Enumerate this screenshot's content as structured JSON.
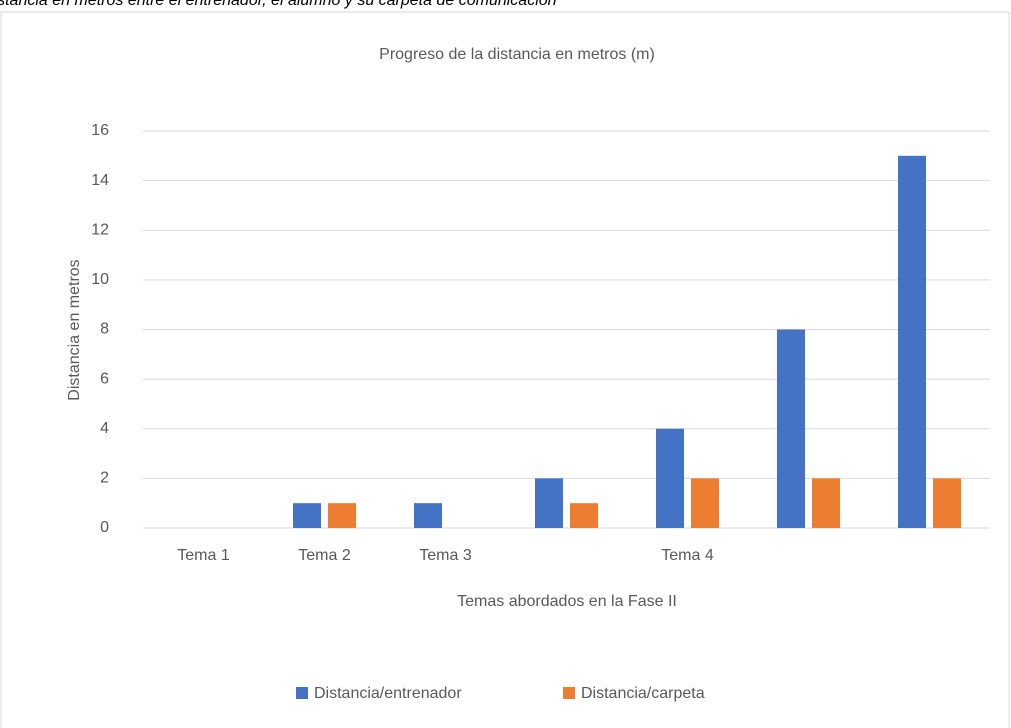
{
  "chart_data": {
    "type": "bar",
    "caption": "Distancia en metros entre el entrenador, el alumno y su carpeta de comunicación",
    "title": "Progreso de la distancia en metros (m)",
    "x_label": "Temas abordados en la Fase II",
    "y_label": "Distancia en metros",
    "categories": [
      "Tema 1",
      "Tema 2",
      "Tema 3",
      null,
      "Tema 4",
      null,
      null
    ],
    "series": [
      {
        "name": "Distancia/entrenador",
        "color": "#4472c4",
        "values": [
          0,
          1,
          1,
          2,
          4,
          8,
          15
        ]
      },
      {
        "name": "Distancia/carpeta",
        "color": "#ed7d31",
        "values": [
          0,
          1,
          0,
          1,
          2,
          2,
          2
        ]
      }
    ],
    "ylim": [
      0,
      16
    ],
    "yticks": [
      0,
      2,
      4,
      6,
      8,
      10,
      12,
      14,
      16
    ],
    "grid": true,
    "legend": "bottom"
  }
}
